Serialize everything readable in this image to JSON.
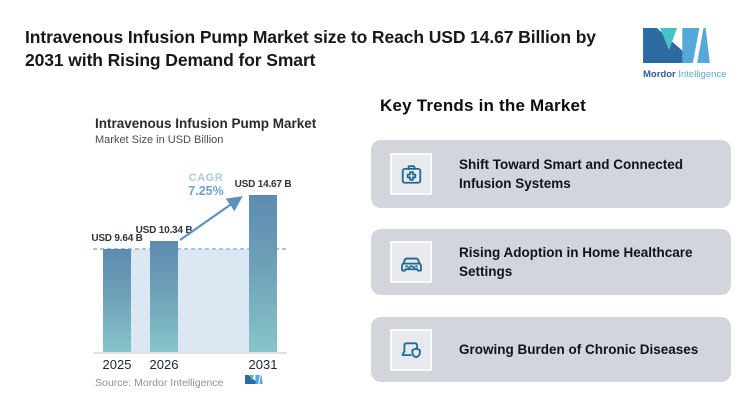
{
  "header": {
    "title_lines": [
      "Intravenous Infusion Pump Market size to Reach USD 14.67 Billion by",
      "2031 with Rising Demand for Smart"
    ],
    "logo": {
      "brand_primary": "Mordor",
      "brand_secondary": "Intelligence"
    }
  },
  "chart": {
    "title": "Intravenous Infusion Pump Market",
    "subtitle": "Market Size in USD Billion",
    "cagr": {
      "label": "CAGR",
      "value": "7.25%"
    },
    "source": "Source: Mordor Intelligence"
  },
  "chart_data": {
    "type": "bar",
    "title": "Intravenous Infusion Pump Market",
    "ylabel": "Market Size in USD Billion",
    "categories": [
      "2025",
      "2026",
      "2031"
    ],
    "values": [
      9.64,
      10.34,
      14.67
    ],
    "bar_labels": [
      "USD 9.64 B",
      "USD 10.34 B",
      "USD 14.67 B"
    ],
    "annotations": [
      {
        "text": "CAGR 7.25%",
        "type": "growth-arrow",
        "from": "2026",
        "to": "2031"
      }
    ],
    "baseline_band": {
      "level": 9.64,
      "style": "dashed-line-with-shaded-band"
    },
    "ylim": [
      0,
      16
    ],
    "grid": false,
    "legend": false,
    "source": "Source: Mordor Intelligence"
  },
  "trends": {
    "heading": "Key Trends in the Market",
    "items": [
      {
        "icon": "medical-kit-icon",
        "text": "Shift Toward Smart and Connected Infusion Systems"
      },
      {
        "icon": "car-icon",
        "text": "Rising Adoption in Home Healthcare Settings"
      },
      {
        "icon": "laptop-shield-icon",
        "text": "Growing Burden of Chronic Diseases"
      }
    ]
  },
  "colors": {
    "bar_top": "#5d8ab1",
    "bar_bottom": "#87c4ca",
    "band": "#dbe8f3",
    "dashed_line": "#a9c4da",
    "arrow": "#5b8fc0",
    "cagr_label_text": "#a9cbe4",
    "cagr_value_text": "#6fa3cf",
    "card_bg": "#d2d6dc",
    "icon_stroke": "#1e6a94",
    "logo_dark": "#2e6aa2",
    "logo_teal": "#46c3c7",
    "logo_light": "#55a9da"
  }
}
